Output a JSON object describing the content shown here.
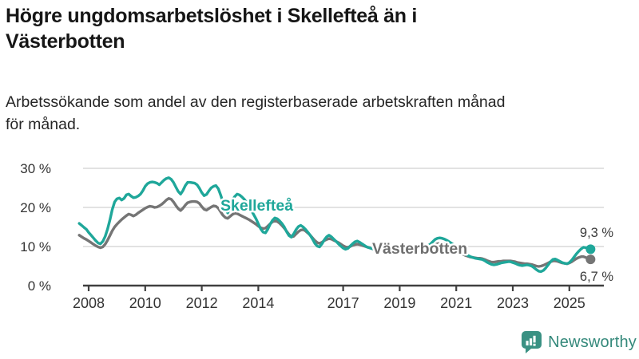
{
  "header": {
    "title": "Högre ungdomsarbetslöshet i Skellefteå än i Västerbotten",
    "title_lines": [
      "Högre ungdomsarbetslöshet i Skellefteå än i",
      "Västerbotten"
    ],
    "subtitle": "Arbetssökande som andel av den registerbaserade arbetskraften månad för månad.",
    "subtitle_lines": [
      "Arbetssökande som andel av den registerbaserade arbetskraften månad",
      "för månad."
    ]
  },
  "branding": {
    "logo_text": "Newsworthy",
    "logo_color": "#35897b"
  },
  "chart_data": {
    "type": "line",
    "title": "Högre ungdomsarbetslöshet i Skellefteå än i Västerbotten",
    "subtitle": "Arbetssökande som andel av den registerbaserade arbetskraften månad för månad.",
    "unit": "%",
    "frequency": "monthly",
    "x_start": {
      "year": 2007,
      "month": 9
    },
    "x_tick_years": [
      2008,
      2010,
      2012,
      2014,
      2017,
      2019,
      2021,
      2023,
      2025
    ],
    "y_ticks": [
      {
        "value": 0,
        "label": "0 %"
      },
      {
        "value": 10,
        "label": "10 %"
      },
      {
        "value": 20,
        "label": "20 %"
      },
      {
        "value": 30,
        "label": "30 %"
      }
    ],
    "ylim": [
      0,
      32
    ],
    "grid": true,
    "legend_position": "inline-labels",
    "colors": {
      "grid": "#d9d9d9",
      "axis": "#404040",
      "text": "#333333"
    },
    "series": [
      {
        "name": "Skellefteå",
        "color": "#1FA79A",
        "end_label": "9,3 %",
        "last_value": 9.3,
        "values": [
          15.9,
          15.4,
          14.9,
          14.4,
          13.6,
          12.9,
          12.2,
          11.5,
          10.9,
          10.7,
          11.3,
          12.6,
          14.4,
          16.8,
          19.4,
          21.4,
          22.2,
          22.4,
          21.9,
          22.3,
          23.2,
          23.4,
          22.9,
          22.5,
          22.6,
          22.9,
          23.4,
          24.3,
          25.4,
          26.1,
          26.4,
          26.5,
          26.4,
          26.2,
          25.8,
          26.4,
          27.0,
          27.4,
          27.6,
          27.2,
          26.4,
          25.2,
          24.1,
          23.4,
          24.3,
          25.6,
          26.4,
          26.4,
          26.3,
          26.2,
          25.8,
          24.9,
          23.8,
          23.0,
          23.3,
          24.2,
          25.0,
          25.4,
          25.6,
          24.8,
          23.2,
          21.4,
          19.6,
          18.6,
          19.8,
          21.9,
          22.8,
          23.4,
          23.2,
          22.7,
          22.1,
          21.3,
          20.4,
          19.3,
          18.2,
          17.1,
          15.8,
          14.5,
          13.7,
          13.5,
          14.4,
          15.7,
          16.7,
          17.3,
          17.1,
          16.6,
          15.9,
          15.0,
          13.8,
          12.8,
          12.4,
          13.2,
          14.3,
          15.1,
          15.4,
          15.0,
          14.4,
          13.7,
          12.9,
          11.9,
          10.8,
          10.1,
          9.9,
          10.7,
          11.7,
          12.5,
          12.9,
          12.5,
          11.9,
          11.3,
          10.7,
          10.1,
          9.6,
          9.3,
          9.5,
          10.1,
          10.7,
          11.2,
          11.4,
          11.1,
          10.7,
          10.3,
          9.9,
          9.7,
          9.5,
          9.3,
          9.2,
          9.3,
          9.6,
          9.8,
          9.8,
          9.6,
          9.4,
          9.2,
          9.1,
          9.0,
          8.9,
          8.8,
          8.8,
          8.9,
          9.1,
          9.3,
          9.4,
          9.4,
          9.5,
          9.5,
          9.6,
          9.8,
          10.2,
          10.6,
          11.2,
          11.8,
          12.1,
          12.2,
          12.1,
          11.9,
          11.6,
          11.2,
          10.8,
          10.4,
          9.9,
          9.4,
          8.9,
          8.4,
          8.0,
          7.7,
          7.4,
          7.2,
          7.0,
          6.9,
          6.8,
          6.7,
          6.4,
          6.0,
          5.7,
          5.4,
          5.3,
          5.4,
          5.6,
          5.8,
          5.9,
          6.0,
          6.1,
          6.1,
          5.9,
          5.7,
          5.4,
          5.2,
          5.1,
          5.2,
          5.3,
          5.2,
          5.0,
          4.6,
          4.1,
          3.7,
          3.6,
          3.9,
          4.5,
          5.3,
          6.1,
          6.7,
          6.8,
          6.5,
          6.2,
          5.9,
          5.7,
          5.6,
          5.9,
          6.5,
          7.3,
          8.1,
          8.8,
          9.4,
          9.8,
          9.7,
          9.5,
          9.3
        ]
      },
      {
        "name": "Västerbotten",
        "color": "#757575",
        "end_label": "6,7 %",
        "last_value": 6.7,
        "values": [
          12.9,
          12.5,
          12.1,
          11.8,
          11.4,
          11.0,
          10.6,
          10.2,
          9.9,
          9.7,
          9.9,
          10.6,
          11.6,
          12.8,
          14.0,
          15.0,
          15.7,
          16.3,
          16.9,
          17.4,
          17.9,
          18.3,
          18.1,
          17.8,
          18.1,
          18.6,
          19.0,
          19.4,
          19.8,
          20.1,
          20.3,
          20.2,
          20.0,
          20.1,
          20.4,
          20.8,
          21.3,
          21.9,
          22.3,
          22.1,
          21.4,
          20.5,
          19.7,
          19.2,
          19.8,
          20.6,
          21.2,
          21.4,
          21.5,
          21.5,
          21.4,
          21.0,
          20.2,
          19.5,
          19.3,
          19.7,
          20.1,
          20.4,
          20.3,
          19.8,
          18.9,
          18.0,
          17.4,
          17.2,
          17.7,
          18.2,
          18.5,
          18.4,
          18.1,
          17.8,
          17.5,
          17.2,
          16.9,
          16.5,
          16.1,
          15.7,
          15.2,
          14.8,
          14.6,
          14.7,
          15.2,
          15.8,
          16.3,
          16.6,
          16.4,
          16.0,
          15.4,
          14.7,
          13.9,
          13.1,
          12.5,
          12.6,
          13.2,
          13.8,
          14.2,
          14.3,
          14.0,
          13.5,
          12.9,
          12.2,
          11.5,
          11.0,
          10.8,
          11.1,
          11.5,
          11.8,
          12.0,
          11.9,
          11.6,
          11.3,
          11.0,
          10.6,
          10.2,
          9.9,
          9.8,
          10.0,
          10.3,
          10.5,
          10.6,
          10.5,
          10.3,
          10.1,
          9.9,
          9.7,
          9.5,
          9.3,
          9.1,
          9.0,
          9.1,
          9.2,
          9.2,
          9.1,
          9.0,
          8.9,
          8.8,
          8.7,
          8.6,
          8.5,
          8.5,
          8.5,
          8.6,
          8.7,
          8.7,
          8.7,
          8.7,
          8.8,
          8.9,
          9.0,
          9.3,
          9.6,
          10.0,
          10.4,
          10.7,
          10.8,
          10.8,
          10.7,
          10.5,
          10.2,
          9.9,
          9.6,
          9.2,
          8.8,
          8.4,
          8.0,
          7.7,
          7.5,
          7.3,
          7.2,
          7.1,
          7.0,
          7.0,
          6.9,
          6.7,
          6.4,
          6.2,
          6.0,
          6.0,
          6.1,
          6.2,
          6.2,
          6.3,
          6.3,
          6.3,
          6.3,
          6.2,
          6.1,
          5.9,
          5.8,
          5.7,
          5.6,
          5.6,
          5.5,
          5.4,
          5.2,
          5.0,
          4.9,
          5.0,
          5.2,
          5.5,
          5.8,
          6.1,
          6.3,
          6.3,
          6.2,
          6.0,
          5.8,
          5.7,
          5.6,
          5.8,
          6.1,
          6.5,
          6.9,
          7.2,
          7.4,
          7.4,
          7.2,
          6.9,
          6.7
        ]
      }
    ]
  }
}
